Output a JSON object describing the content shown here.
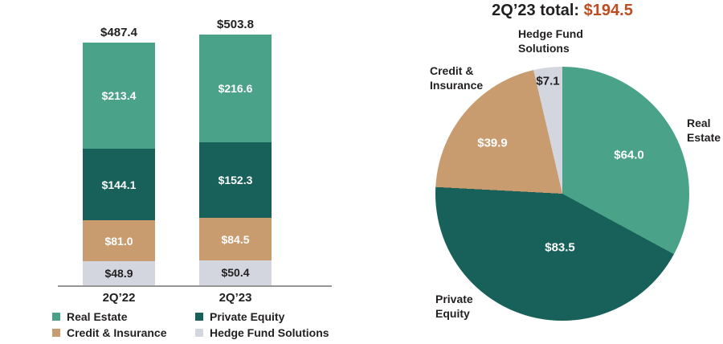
{
  "chart_data": [
    {
      "type": "bar",
      "subtype": "stacked",
      "categories": [
        "2Q’22",
        "2Q’23"
      ],
      "series": [
        {
          "name": "Real Estate",
          "values": [
            213.4,
            216.6
          ],
          "labels": [
            "$213.4",
            "$216.6"
          ],
          "color": "#4aa289",
          "label_color": "#ffffff"
        },
        {
          "name": "Private Equity",
          "values": [
            144.1,
            152.3
          ],
          "labels": [
            "$144.1",
            "$152.3"
          ],
          "color": "#17615a",
          "label_color": "#ffffff"
        },
        {
          "name": "Credit & Insurance",
          "values": [
            81.0,
            84.5
          ],
          "labels": [
            "$81.0",
            "$84.5"
          ],
          "color": "#c99c70",
          "label_color": "#ffffff"
        },
        {
          "name": "Hedge Fund Solutions",
          "values": [
            48.9,
            50.4
          ],
          "labels": [
            "$48.9",
            "$50.4"
          ],
          "color": "#d3d6df",
          "label_color": "#221f20"
        }
      ],
      "stack_order_bottom_to_top": [
        "Hedge Fund Solutions",
        "Credit & Insurance",
        "Private Equity",
        "Real Estate"
      ],
      "totals": [
        487.4,
        503.8
      ],
      "total_labels": [
        "$487.4",
        "$503.8"
      ],
      "value_prefix": "$",
      "grid": false,
      "legend_position": "bottom",
      "ylim": [
        0,
        520
      ]
    },
    {
      "type": "pie",
      "title": {
        "prefix": "2Q’23 total:",
        "value": "$194.5",
        "value_color": "#bb4d20",
        "prefix_color": "#221f20"
      },
      "total": 194.5,
      "start_angle_deg": 0,
      "direction": "clockwise",
      "slices": [
        {
          "name": "Real Estate",
          "value": 64.0,
          "label": "$64.0",
          "color": "#4aa289",
          "label_color": "#ffffff"
        },
        {
          "name": "Private Equity",
          "value": 83.5,
          "label": "$83.5",
          "color": "#17615a",
          "label_color": "#ffffff"
        },
        {
          "name": "Credit & Insurance",
          "value": 39.9,
          "label": "$39.9",
          "color": "#c99c70",
          "label_color": "#ffffff"
        },
        {
          "name": "Hedge Fund Solutions",
          "value": 7.1,
          "label": "$7.1",
          "color": "#d3d6df",
          "label_color": "#221f20"
        }
      ]
    }
  ]
}
